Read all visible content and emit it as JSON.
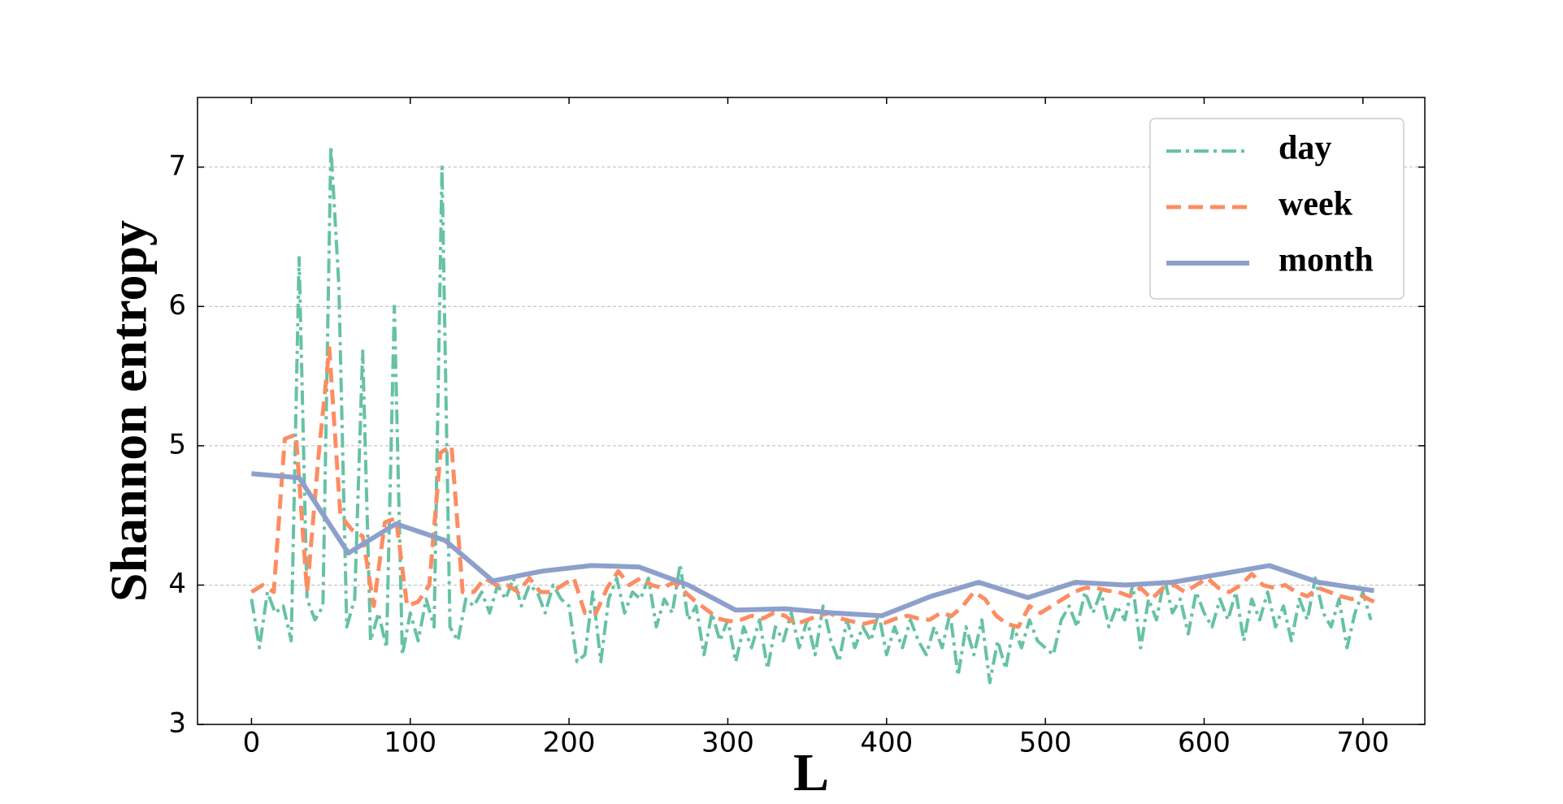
{
  "chart_data": {
    "type": "line",
    "xlabel": "L",
    "ylabel": "Shannon entropy",
    "xlim": [
      -34,
      739
    ],
    "ylim": [
      3,
      7.5
    ],
    "xticks": [
      0,
      100,
      200,
      300,
      400,
      500,
      600,
      700
    ],
    "yticks": [
      3,
      4,
      5,
      6,
      7
    ],
    "grid": true,
    "legend": "upper right",
    "series": [
      {
        "name": "day",
        "color": "#66c2a5",
        "style": "dashdot",
        "x": [
          0,
          5,
          10,
          15,
          20,
          25,
          30,
          35,
          40,
          45,
          50,
          55,
          60,
          65,
          70,
          75,
          80,
          85,
          90,
          95,
          100,
          105,
          110,
          115,
          120,
          125,
          130,
          135,
          140,
          145,
          150,
          155,
          160,
          165,
          170,
          175,
          180,
          185,
          190,
          195,
          200,
          205,
          210,
          215,
          220,
          225,
          230,
          235,
          240,
          245,
          250,
          255,
          260,
          265,
          270,
          275,
          280,
          285,
          290,
          295,
          300,
          305,
          310,
          315,
          320,
          325,
          330,
          335,
          340,
          345,
          350,
          355,
          360,
          365,
          370,
          375,
          380,
          385,
          390,
          395,
          400,
          405,
          410,
          415,
          420,
          425,
          430,
          435,
          440,
          445,
          450,
          455,
          460,
          465,
          470,
          475,
          480,
          485,
          490,
          495,
          500,
          505,
          510,
          515,
          520,
          525,
          530,
          535,
          540,
          545,
          550,
          555,
          560,
          565,
          570,
          575,
          580,
          585,
          590,
          595,
          600,
          605,
          610,
          615,
          620,
          625,
          630,
          635,
          640,
          645,
          650,
          655,
          660,
          665,
          670,
          675,
          680,
          685,
          690,
          695,
          700,
          705
        ],
        "values": [
          3.9,
          3.55,
          3.95,
          3.8,
          3.85,
          3.6,
          6.35,
          3.9,
          3.75,
          3.85,
          7.15,
          6.15,
          3.7,
          3.9,
          5.68,
          3.6,
          3.8,
          3.55,
          6.0,
          3.5,
          3.8,
          3.6,
          3.9,
          3.7,
          7.0,
          3.7,
          3.6,
          3.9,
          3.85,
          3.95,
          3.8,
          4.0,
          3.9,
          4.05,
          3.85,
          4.0,
          3.95,
          3.8,
          4.0,
          3.9,
          3.85,
          3.45,
          3.5,
          3.95,
          3.45,
          3.9,
          4.05,
          3.8,
          3.95,
          3.9,
          4.05,
          3.7,
          3.9,
          3.8,
          4.15,
          3.75,
          3.85,
          3.5,
          3.8,
          3.6,
          3.75,
          3.45,
          3.7,
          3.55,
          3.75,
          3.4,
          3.7,
          3.6,
          3.8,
          3.55,
          3.75,
          3.5,
          3.85,
          3.6,
          3.45,
          3.75,
          3.55,
          3.7,
          3.6,
          3.8,
          3.5,
          3.7,
          3.55,
          3.75,
          3.6,
          3.5,
          3.7,
          3.55,
          3.8,
          3.35,
          3.7,
          3.5,
          3.75,
          3.3,
          3.6,
          3.4,
          3.7,
          3.55,
          3.75,
          3.6,
          3.55,
          3.5,
          3.75,
          3.85,
          3.7,
          3.95,
          3.8,
          3.95,
          3.7,
          3.85,
          3.75,
          4.0,
          3.55,
          3.9,
          3.75,
          4.05,
          3.8,
          3.9,
          3.65,
          3.95,
          3.8,
          3.7,
          3.9,
          3.75,
          3.95,
          3.6,
          3.9,
          3.75,
          3.95,
          3.7,
          3.85,
          3.6,
          3.9,
          3.75,
          4.05,
          3.8,
          3.7,
          3.9,
          3.55,
          3.8,
          3.95,
          3.75
        ]
      },
      {
        "name": "week",
        "color": "#fc8d62",
        "style": "dashed",
        "x": [
          0,
          7,
          14,
          21,
          28,
          35,
          42,
          49,
          56,
          63,
          70,
          77,
          84,
          91,
          98,
          105,
          112,
          119,
          126,
          133,
          140,
          147,
          154,
          161,
          168,
          175,
          182,
          189,
          196,
          203,
          210,
          217,
          224,
          231,
          238,
          245,
          252,
          259,
          266,
          273,
          280,
          287,
          294,
          301,
          308,
          315,
          322,
          329,
          336,
          343,
          350,
          357,
          364,
          371,
          378,
          385,
          392,
          399,
          406,
          413,
          420,
          427,
          434,
          441,
          448,
          455,
          462,
          469,
          476,
          483,
          490,
          497,
          504,
          511,
          518,
          525,
          532,
          539,
          546,
          553,
          560,
          567,
          574,
          581,
          588,
          595,
          602,
          609,
          616,
          623,
          630,
          637,
          644,
          651,
          658,
          665,
          672,
          679,
          686,
          693,
          700,
          707
        ],
        "values": [
          3.95,
          4.0,
          3.95,
          5.05,
          5.08,
          3.95,
          4.9,
          5.7,
          4.5,
          4.4,
          4.35,
          3.85,
          4.45,
          4.48,
          3.85,
          3.88,
          4.0,
          4.95,
          5.0,
          3.95,
          3.95,
          4.05,
          4.0,
          4.0,
          3.95,
          4.05,
          3.95,
          3.95,
          4.0,
          4.05,
          3.8,
          3.8,
          3.98,
          4.1,
          4.0,
          4.05,
          4.0,
          3.98,
          4.02,
          3.95,
          3.88,
          3.82,
          3.76,
          3.74,
          3.75,
          3.78,
          3.76,
          3.8,
          3.78,
          3.72,
          3.75,
          3.78,
          3.8,
          3.76,
          3.74,
          3.72,
          3.74,
          3.73,
          3.76,
          3.78,
          3.76,
          3.75,
          3.8,
          3.78,
          3.85,
          3.95,
          3.9,
          3.78,
          3.72,
          3.7,
          3.85,
          3.8,
          3.85,
          3.9,
          3.95,
          3.98,
          3.98,
          3.96,
          3.95,
          3.92,
          3.98,
          3.9,
          3.98,
          4.0,
          3.95,
          4.0,
          4.05,
          3.98,
          3.95,
          4.0,
          4.08,
          4.0,
          3.98,
          4.0,
          3.95,
          3.92,
          3.98,
          3.95,
          3.92,
          3.9,
          3.92,
          3.88
        ]
      },
      {
        "name": "month",
        "color": "#8da0cb",
        "style": "solid",
        "x": [
          0,
          30,
          61,
          91,
          122,
          152,
          183,
          214,
          244,
          275,
          305,
          336,
          366,
          397,
          428,
          458,
          489,
          519,
          550,
          580,
          611,
          641,
          672,
          707
        ],
        "values": [
          4.8,
          4.77,
          4.23,
          4.44,
          4.32,
          4.03,
          4.1,
          4.14,
          4.13,
          4.0,
          3.82,
          3.83,
          3.8,
          3.78,
          3.92,
          4.02,
          3.91,
          4.02,
          4.0,
          4.02,
          4.08,
          4.14,
          4.02,
          3.96
        ]
      }
    ]
  }
}
